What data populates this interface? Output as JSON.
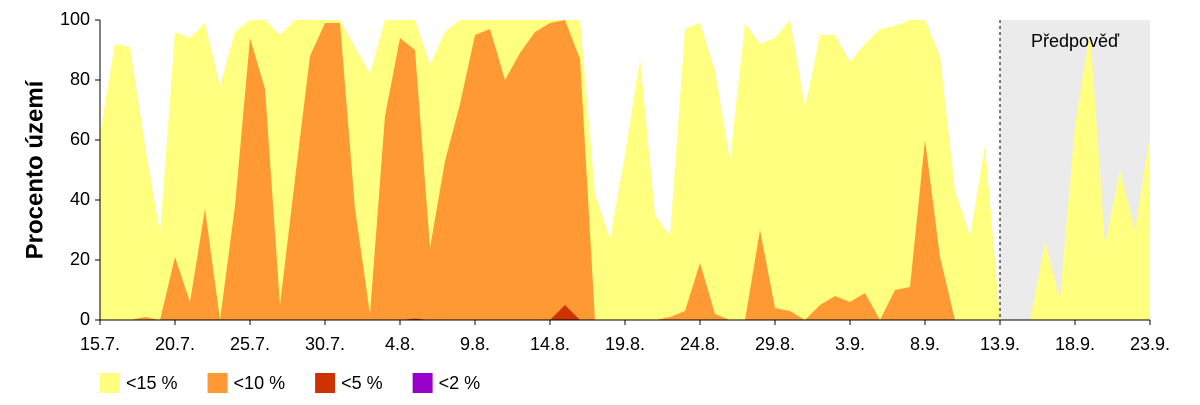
{
  "chart_data": {
    "type": "area",
    "ylabel": "Procento území",
    "categories": [
      "15.7.",
      null,
      null,
      null,
      null,
      "20.7.",
      null,
      null,
      null,
      null,
      "25.7.",
      null,
      null,
      null,
      null,
      "30.7.",
      null,
      null,
      null,
      null,
      "4.8.",
      null,
      null,
      null,
      null,
      "9.8.",
      null,
      null,
      null,
      null,
      "14.8.",
      null,
      null,
      null,
      null,
      "19.8.",
      null,
      null,
      null,
      null,
      "24.8.",
      null,
      null,
      null,
      null,
      "29.8.",
      null,
      null,
      null,
      null,
      "3.9.",
      null,
      null,
      null,
      null,
      "8.9.",
      null,
      null,
      null,
      null,
      "13.9.",
      null,
      null,
      null,
      null,
      "18.9.",
      null,
      null,
      null,
      null,
      "23.9."
    ],
    "series": [
      {
        "name": "<15 %",
        "color": "#ffff80",
        "values": [
          62,
          92,
          91,
          58,
          29,
          96,
          94,
          99,
          78,
          96,
          100,
          100,
          95,
          100,
          100,
          100,
          100,
          91,
          82,
          100,
          100,
          100,
          85,
          96,
          100,
          100,
          100,
          100,
          100,
          100,
          100,
          100,
          100,
          42,
          27,
          55,
          87,
          35,
          28,
          97,
          99,
          83,
          53,
          99,
          92,
          94,
          100,
          71,
          95,
          95,
          86,
          92,
          97,
          98,
          100,
          100,
          88,
          43,
          28,
          58,
          0,
          0,
          0,
          26,
          7,
          65,
          96,
          25,
          50,
          30,
          62
        ]
      },
      {
        "name": "<10 %",
        "color": "#ff9933",
        "values": [
          0,
          0,
          0,
          1,
          0,
          21,
          6,
          37,
          0,
          38,
          94,
          77,
          5,
          47,
          88,
          99,
          99,
          37,
          2,
          68,
          94,
          90,
          24,
          53,
          72,
          95,
          97,
          80,
          89,
          96,
          99,
          100,
          87,
          0,
          0,
          0,
          0,
          0,
          1,
          3,
          19,
          2,
          0,
          0,
          30,
          4,
          3,
          0,
          5,
          8,
          6,
          9,
          0,
          10,
          11,
          60,
          21,
          0,
          0,
          0,
          0,
          null,
          null,
          null,
          null,
          null,
          null,
          null,
          null,
          null,
          null
        ]
      },
      {
        "name": "<5 %",
        "color": "#cc3300",
        "values": [
          0,
          0,
          0,
          0,
          0,
          0,
          0,
          0,
          0,
          0,
          0,
          0,
          0,
          0,
          0,
          0,
          0,
          0,
          0,
          0,
          0,
          0.5,
          0,
          0,
          0,
          0,
          0,
          0,
          0,
          0,
          0,
          5,
          0,
          0,
          0,
          0,
          0,
          0,
          0,
          0,
          0,
          0,
          0,
          0,
          0,
          0,
          0,
          0,
          0,
          0,
          0,
          0,
          0,
          0,
          0,
          0,
          0,
          0,
          0,
          0,
          0,
          null,
          null,
          null,
          null,
          null,
          null,
          null,
          null,
          null,
          null
        ]
      },
      {
        "name": "<2 %",
        "color": "#9900cc",
        "values": [
          0,
          0,
          0,
          0,
          0,
          0,
          0,
          0,
          0,
          0,
          0,
          0,
          0,
          0,
          0,
          0,
          0,
          0,
          0,
          0,
          0,
          0,
          0,
          0,
          0,
          0,
          0,
          0,
          0,
          0,
          0,
          0,
          0,
          0,
          0,
          0,
          0,
          0,
          0,
          0,
          0,
          0,
          0,
          0,
          0,
          0,
          0,
          0,
          0,
          0,
          0,
          0,
          0,
          0,
          0,
          0,
          0,
          0,
          0,
          0,
          0,
          null,
          null,
          null,
          null,
          null,
          null,
          null,
          null,
          null,
          null
        ]
      }
    ],
    "ylim": [
      0,
      100
    ],
    "yticks": [
      0,
      20,
      40,
      60,
      80,
      100
    ],
    "forecast": {
      "label": "Předpověď",
      "from": "13.9.",
      "color": "#ebebeb"
    }
  }
}
